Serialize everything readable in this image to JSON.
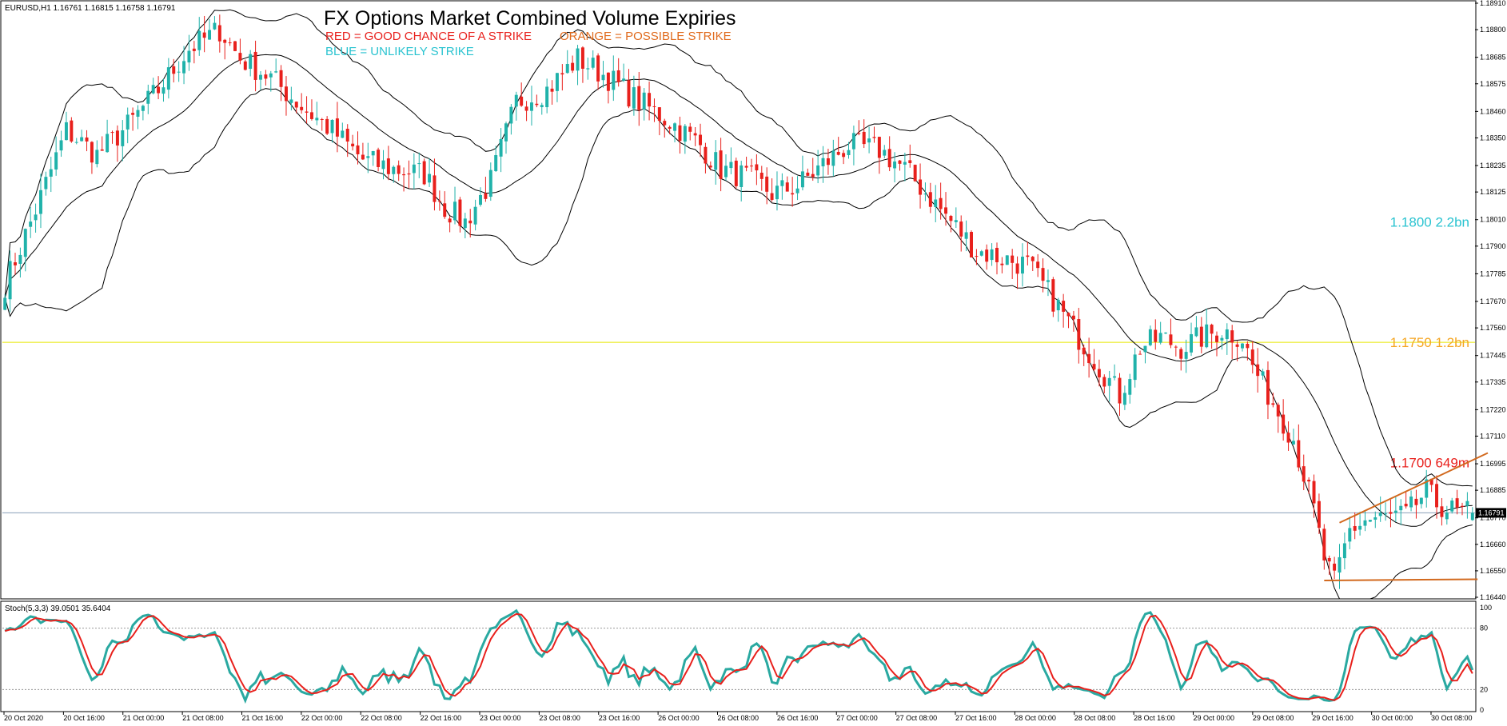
{
  "header": {
    "symbol_info": "EURUSD,H1  1.16761 1.16815 1.16758 1.16791",
    "title": "FX Options Market Combined Volume Expiries",
    "legend": {
      "red": "RED = GOOD CHANCE OF A STRIKE",
      "orange": "ORANGE = POSSIBLE STRIKE",
      "blue": "BLUE = UNLIKELY STRIKE"
    }
  },
  "colors": {
    "bull": "#20b2aa",
    "bear": "#e8201c",
    "bands": "#000000",
    "strike_line": "#e6e600",
    "price_line": "#8aa0b8",
    "trend": "#d2691e",
    "stoch_main": "#2aa9a1",
    "stoch_signal": "#e8201c",
    "red_label": "#e8201c",
    "orange_label": "#f5a623",
    "blue_label": "#29c3d0"
  },
  "chart_data": [
    {
      "type": "candlestick",
      "title": "FX Options Market Combined Volume Expiries",
      "symbol": "EURUSD",
      "timeframe": "H1",
      "ohlc_last": {
        "open": 1.16761,
        "high": 1.16815,
        "low": 1.16758,
        "close": 1.16791
      },
      "current_price_label": "1.16791",
      "ylim": [
        1.1644,
        1.1891
      ],
      "y_ticks": [
        "1.18910",
        "1.18800",
        "1.18685",
        "1.18575",
        "1.18460",
        "1.18350",
        "1.18235",
        "1.18125",
        "1.18010",
        "1.17900",
        "1.17785",
        "1.17670",
        "1.17560",
        "1.17445",
        "1.17335",
        "1.17220",
        "1.17110",
        "1.16995",
        "1.16885",
        "1.16770",
        "1.16660",
        "1.16550",
        "1.16440"
      ],
      "x_ticks": [
        "20 Oct 2020",
        "20 Oct 16:00",
        "21 Oct 00:00",
        "21 Oct 08:00",
        "21 Oct 16:00",
        "22 Oct 00:00",
        "22 Oct 08:00",
        "22 Oct 16:00",
        "23 Oct 00:00",
        "23 Oct 08:00",
        "23 Oct 16:00",
        "26 Oct 00:00",
        "26 Oct 08:00",
        "26 Oct 16:00",
        "27 Oct 00:00",
        "27 Oct 08:00",
        "27 Oct 16:00",
        "28 Oct 00:00",
        "28 Oct 08:00",
        "28 Oct 16:00",
        "29 Oct 00:00",
        "29 Oct 08:00",
        "29 Oct 16:00",
        "30 Oct 00:00",
        "30 Oct 08:00"
      ],
      "path_points": [
        [
          0,
          1.1774
        ],
        [
          6,
          1.1805
        ],
        [
          12,
          1.1838
        ],
        [
          18,
          1.1828
        ],
        [
          24,
          1.184
        ],
        [
          30,
          1.1855
        ],
        [
          36,
          1.1872
        ],
        [
          42,
          1.188
        ],
        [
          46,
          1.1868
        ],
        [
          52,
          1.186
        ],
        [
          58,
          1.1848
        ],
        [
          64,
          1.1838
        ],
        [
          70,
          1.1826
        ],
        [
          76,
          1.1822
        ],
        [
          82,
          1.182
        ],
        [
          86,
          1.1806
        ],
        [
          90,
          1.18
        ],
        [
          95,
          1.1817
        ],
        [
          100,
          1.185
        ],
        [
          106,
          1.1855
        ],
        [
          112,
          1.1868
        ],
        [
          118,
          1.186
        ],
        [
          124,
          1.185
        ],
        [
          130,
          1.1842
        ],
        [
          136,
          1.1832
        ],
        [
          140,
          1.1822
        ],
        [
          146,
          1.1818
        ],
        [
          150,
          1.1812
        ],
        [
          155,
          1.1815
        ],
        [
          160,
          1.1824
        ],
        [
          165,
          1.1832
        ],
        [
          171,
          1.183
        ],
        [
          176,
          1.1822
        ],
        [
          181,
          1.181
        ],
        [
          186,
          1.1798
        ],
        [
          190,
          1.1788
        ],
        [
          195,
          1.1785
        ],
        [
          200,
          1.1782
        ],
        [
          205,
          1.1768
        ],
        [
          210,
          1.1752
        ],
        [
          214,
          1.174
        ],
        [
          218,
          1.1728
        ],
        [
          222,
          1.1748
        ],
        [
          226,
          1.1752
        ],
        [
          230,
          1.1748
        ],
        [
          234,
          1.1752
        ],
        [
          238,
          1.1755
        ],
        [
          242,
          1.1752
        ],
        [
          244,
          1.174
        ],
        [
          248,
          1.1725
        ],
        [
          252,
          1.171
        ],
        [
          256,
          1.168
        ],
        [
          258,
          1.166
        ],
        [
          260,
          1.165
        ],
        [
          263,
          1.1672
        ],
        [
          266,
          1.1676
        ],
        [
          270,
          1.1677
        ],
        [
          274,
          1.1678
        ],
        [
          278,
          1.1688
        ],
        [
          280,
          1.1683
        ],
        [
          284,
          1.1679
        ],
        [
          287,
          1.1679
        ]
      ],
      "bars_count": 288,
      "expiry_levels": [
        {
          "price": 1.18,
          "label": "1.1800 2.2bn",
          "color": "#29c3d0"
        },
        {
          "price": 1.175,
          "label": "1.1750 1.2bn",
          "color": "#f5a623"
        },
        {
          "price": 1.17,
          "label": "1.1700 649m",
          "color": "#e8201c"
        }
      ],
      "horizontal_line_price": 1.175,
      "trend_lines": [
        {
          "from": [
            261,
            1.1675
          ],
          "to": [
            290,
            1.1704
          ]
        },
        {
          "from": [
            258,
            1.1651
          ],
          "to": [
            288,
            1.16515
          ]
        }
      ]
    },
    {
      "type": "line",
      "title": "Stoch(5,3,3) 39.0501 35.6404",
      "ylim": [
        0,
        100
      ],
      "y_ticks": [
        "100",
        "80",
        "20",
        "0"
      ],
      "levels": [
        80,
        20
      ],
      "series": [
        {
          "name": "main",
          "last": 39.0501
        },
        {
          "name": "signal",
          "last": 35.6404
        }
      ]
    }
  ]
}
